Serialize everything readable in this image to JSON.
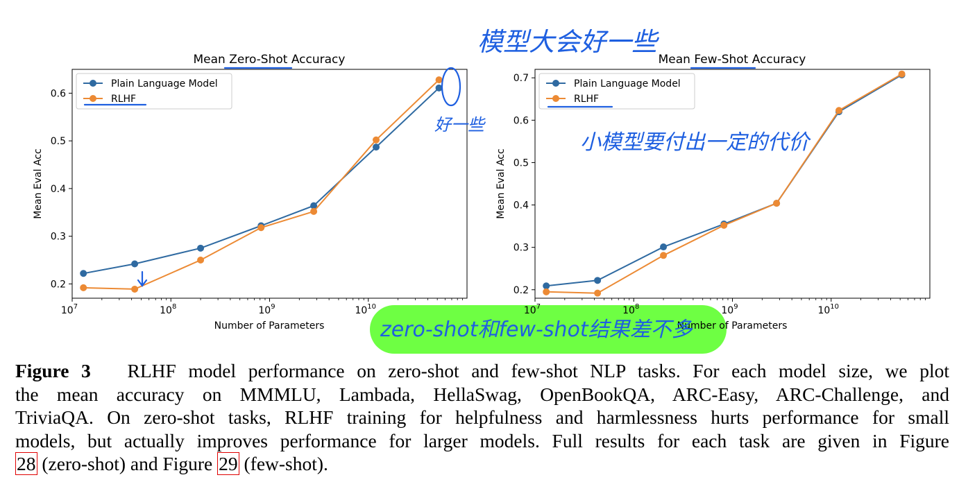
{
  "chart_data": [
    {
      "type": "line",
      "title": "Mean Zero-Shot Accuracy",
      "xlabel": "Number of Parameters",
      "ylabel": "Mean Eval Acc",
      "xscale": "log",
      "xlim": [
        10000000.0,
        100000000000.0
      ],
      "ylim": [
        0.17,
        0.65
      ],
      "xticks": [
        {
          "value": 10000000.0,
          "base": "10",
          "exp": "7"
        },
        {
          "value": 100000000.0,
          "base": "10",
          "exp": "8"
        },
        {
          "value": 1000000000.0,
          "base": "10",
          "exp": "9"
        },
        {
          "value": 10000000000.0,
          "base": "10",
          "exp": "10"
        }
      ],
      "yticks": [
        "0.2",
        "0.3",
        "0.4",
        "0.5",
        "0.6"
      ],
      "legend_position": "top-left",
      "grid": false,
      "x": [
        13000000,
        43000000,
        200000000,
        820000000,
        2800000000,
        12000000000,
        52000000000
      ],
      "series": [
        {
          "name": "Plain Language Model",
          "color": "#2f6aa1",
          "values": [
            0.222,
            0.242,
            0.275,
            0.322,
            0.364,
            0.487,
            0.611
          ]
        },
        {
          "name": "RLHF",
          "color": "#ec8a34",
          "values": [
            0.192,
            0.189,
            0.25,
            0.318,
            0.352,
            0.502,
            0.628
          ]
        }
      ]
    },
    {
      "type": "line",
      "title": "Mean Few-Shot Accuracy",
      "xlabel": "Number of Parameters",
      "ylabel": "Mean Eval Acc",
      "xscale": "log",
      "xlim": [
        10000000.0,
        100000000000.0
      ],
      "ylim": [
        0.18,
        0.72
      ],
      "xticks": [
        {
          "value": 10000000.0,
          "base": "10",
          "exp": "7"
        },
        {
          "value": 100000000.0,
          "base": "10",
          "exp": "8"
        },
        {
          "value": 1000000000.0,
          "base": "10",
          "exp": "9"
        },
        {
          "value": 10000000000.0,
          "base": "10",
          "exp": "10"
        }
      ],
      "yticks": [
        "0.2",
        "0.3",
        "0.4",
        "0.5",
        "0.6",
        "0.7"
      ],
      "legend_position": "top-left",
      "grid": false,
      "x": [
        13000000,
        43000000,
        200000000,
        820000000,
        2800000000,
        12000000000,
        52000000000
      ],
      "series": [
        {
          "name": "Plain Language Model",
          "color": "#2f6aa1",
          "values": [
            0.209,
            0.222,
            0.301,
            0.355,
            0.404,
            0.62,
            0.707
          ]
        },
        {
          "name": "RLHF",
          "color": "#ec8a34",
          "values": [
            0.195,
            0.192,
            0.281,
            0.352,
            0.404,
            0.623,
            0.709
          ]
        }
      ]
    }
  ],
  "caption": {
    "label": "Figure 3",
    "line1": "RLHF model performance on zero-shot and few-shot NLP tasks. For each model size, we plot",
    "line2": "the mean accuracy on MMMLU, Lambada, HellaSwag, OpenBookQA, ARC-Easy, ARC-Challenge, and",
    "line3": "TriviaQA. On zero-shot tasks, RLHF training for helpfulness and harmlessness hurts performance for small",
    "line4": "models, but actually improves performance for larger models. Full results for each task are given in Figure",
    "ref1": "28",
    "mid": "(zero-shot) and Figure",
    "ref2": "29",
    "end": "(few-shot)."
  },
  "annotations": {
    "top_note": "模型大会好一些",
    "peak_note": "好一些",
    "small_model_note": "小模型要付出一定的代价",
    "highlight_note": "zero-shot和few-shot结果差不多",
    "annotation_color": "#1e5fe0",
    "highlight_color": "#55ff22"
  }
}
